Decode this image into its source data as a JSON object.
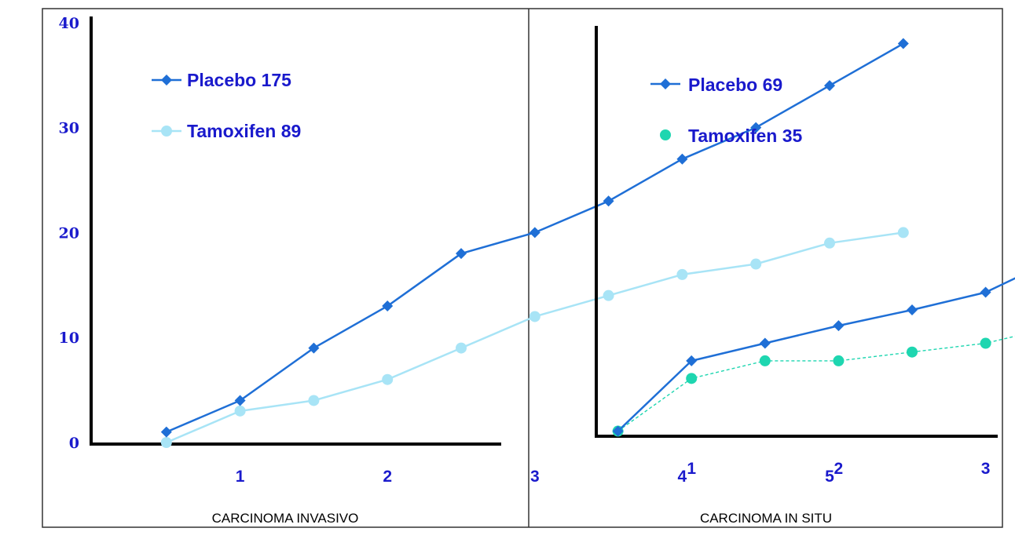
{
  "colors": {
    "placebo": "#1f6fd6",
    "tamoxifen_invasive": "#a8e4f6",
    "tamoxifen_insitu": "#1ed6b0",
    "tick_text": "#1a1acc",
    "axis": "#000000",
    "frame": "#333333"
  },
  "chart_data": [
    {
      "type": "line",
      "title": "",
      "caption": "CARCINOMA INVASIVO",
      "xlabel": "",
      "ylabel": "",
      "x_ticks": [
        "1",
        "2",
        "3",
        "4",
        "5"
      ],
      "y_ticks": [
        "0",
        "10",
        "20",
        "30",
        "40"
      ],
      "xlim": [
        0,
        5.7
      ],
      "ylim": [
        0,
        40
      ],
      "grid": false,
      "legend_position": "top-left",
      "series": [
        {
          "name": "Placebo 175",
          "marker": "diamond",
          "color_key": "placebo",
          "x": [
            0.5,
            1,
            1.5,
            2,
            2.5,
            3,
            3.5,
            4,
            4.5,
            5,
            5.5
          ],
          "y": [
            1,
            4,
            9,
            13,
            18,
            20,
            23,
            27,
            30,
            34,
            38
          ]
        },
        {
          "name": "Tamoxifen 89",
          "marker": "circle",
          "color_key": "tamoxifen_invasive",
          "x": [
            0.5,
            1,
            1.5,
            2,
            2.5,
            3,
            3.5,
            4,
            4.5,
            5,
            5.5
          ],
          "y": [
            0,
            3,
            4,
            6,
            9,
            12,
            14,
            16,
            17,
            19,
            20
          ]
        }
      ]
    },
    {
      "type": "line",
      "title": "",
      "caption": "CARCINOMA IN SITU",
      "xlabel": "",
      "ylabel": "",
      "x_ticks": [
        "1",
        "2",
        "3",
        "4",
        "5"
      ],
      "y_ticks": [],
      "xlim": [
        0,
        5.7
      ],
      "ylim": [
        0,
        40
      ],
      "grid": false,
      "legend_position": "top-left",
      "series": [
        {
          "name": "Placebo 69",
          "marker": "diamond",
          "color_key": "placebo",
          "x": [
            0.5,
            1,
            1.5,
            2,
            2.5,
            3,
            3.5,
            4,
            4.5,
            5,
            5.5
          ],
          "y": [
            0.2,
            4.2,
            5.2,
            6.2,
            7.1,
            8.1,
            10.1,
            11.1,
            13.1,
            14.1,
            17.1
          ]
        },
        {
          "name": "Tamoxifen 35",
          "marker": "circle",
          "color_key": "tamoxifen_insitu",
          "x": [
            0.5,
            1,
            1.5,
            2,
            2.5,
            3,
            3.5,
            4,
            4.5,
            5,
            5.5
          ],
          "y": [
            0.2,
            3.2,
            4.2,
            4.2,
            4.7,
            5.2,
            6.2,
            6.7,
            7.2,
            8.2,
            9.3
          ]
        }
      ]
    }
  ]
}
